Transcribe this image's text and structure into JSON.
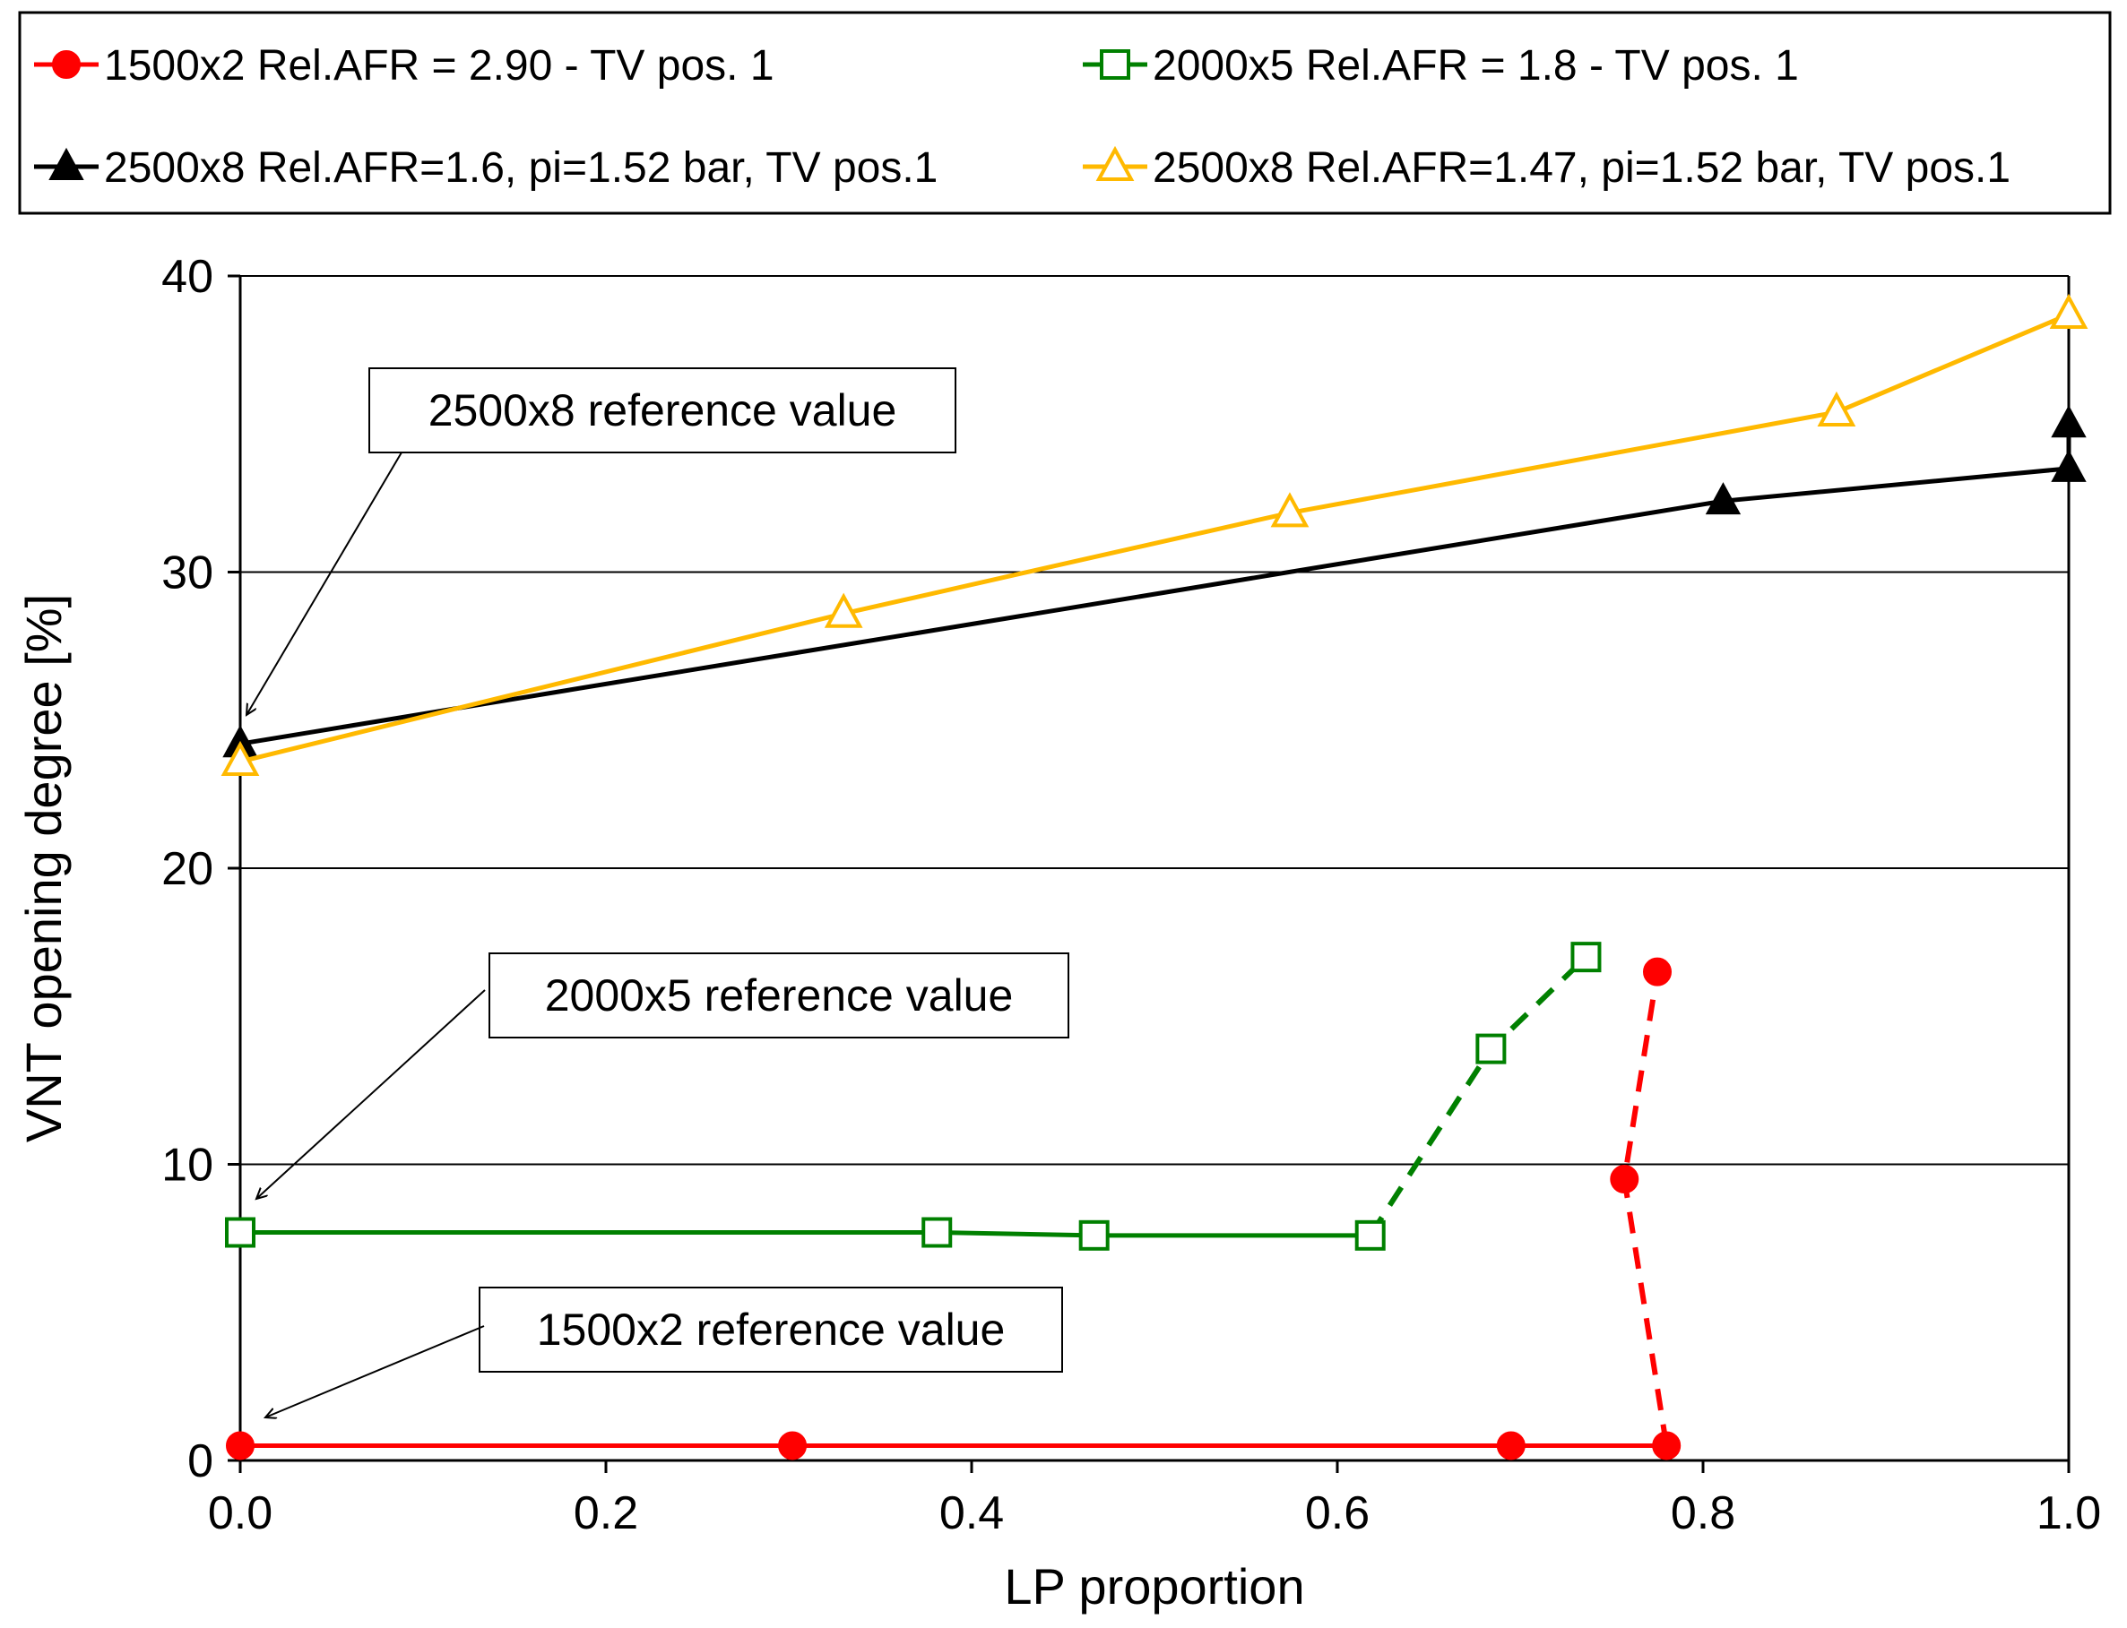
{
  "chart_data": {
    "type": "line",
    "xlabel": "LP proportion",
    "ylabel": "VNT opening degree [%]",
    "xlim": [
      0.0,
      1.0
    ],
    "ylim": [
      0,
      40
    ],
    "x_ticks": [
      "0.0",
      "0.2",
      "0.4",
      "0.6",
      "0.8",
      "1.0"
    ],
    "y_ticks": [
      "0",
      "10",
      "20",
      "30",
      "40"
    ],
    "grid": "horizontal",
    "legend_position": "top",
    "series": [
      {
        "name": "1500x2 Rel.AFR = 2.90 - TV pos. 1",
        "color": "#ff0000",
        "marker": "circle-filled",
        "points": [
          [
            0.0,
            0.5
          ],
          [
            0.302,
            0.5
          ],
          [
            0.695,
            0.5
          ],
          [
            0.78,
            0.5
          ],
          [
            0.757,
            9.5
          ],
          [
            0.775,
            16.5
          ]
        ],
        "dashed_from_index": 3
      },
      {
        "name": "2000x5 Rel.AFR = 1.8 - TV pos. 1",
        "color": "#008000",
        "marker": "square-open",
        "points": [
          [
            0.0,
            7.7
          ],
          [
            0.381,
            7.7
          ],
          [
            0.467,
            7.6
          ],
          [
            0.618,
            7.6
          ],
          [
            0.684,
            13.9
          ],
          [
            0.736,
            17.0
          ]
        ],
        "dashed_from_index": 3
      },
      {
        "name": "2500x8 Rel.AFR=1.6, pi=1.52 bar, TV pos.1",
        "color": "#000000",
        "marker": "triangle-filled",
        "points": [
          [
            0.0,
            24.2
          ],
          [
            0.811,
            32.4
          ],
          [
            1.0,
            33.5
          ],
          [
            1.0,
            35.0
          ]
        ]
      },
      {
        "name": "2500x8 Rel.AFR=1.47, pi=1.52 bar, TV pos.1",
        "color": "#ffb900",
        "marker": "triangle-open",
        "points": [
          [
            0.0,
            23.6
          ],
          [
            0.33,
            28.6
          ],
          [
            0.574,
            32.0
          ],
          [
            0.873,
            35.4
          ],
          [
            1.0,
            38.7
          ]
        ]
      }
    ],
    "annotations": [
      {
        "text": "2500x8 reference value",
        "target": [
          0.0,
          24.2
        ]
      },
      {
        "text": "2000x5 reference value",
        "target": [
          0.0,
          7.7
        ]
      },
      {
        "text": "1500x2 reference value",
        "target": [
          0.0,
          0.5
        ]
      }
    ]
  }
}
